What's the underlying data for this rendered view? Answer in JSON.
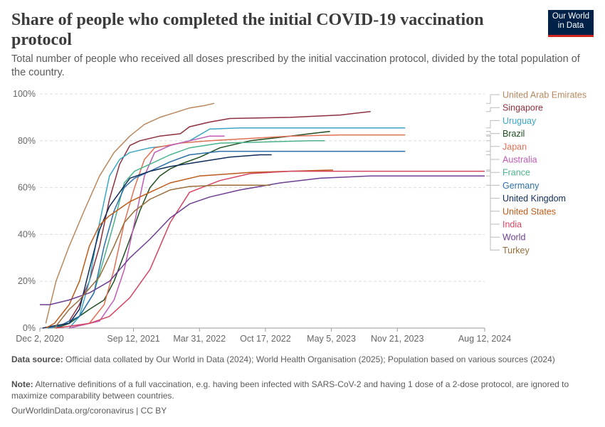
{
  "header": {
    "title": "Share of people who completed the initial COVID-19 vaccination protocol",
    "subtitle": "Total number of people who received all doses prescribed by the initial vaccination protocol, divided by the total population of the country.",
    "logo_line1": "Our World",
    "logo_line2": "in Data"
  },
  "colors": {
    "logo_bg": "#002147",
    "logo_accent": "#ce261e",
    "grid": "#dddddd",
    "axis": "#999999",
    "tick_text": "#666666",
    "connector": "#bbbbbb"
  },
  "chart_data": {
    "type": "line",
    "title": "Share of people who completed the initial COVID-19 vaccination protocol",
    "xlabel": "",
    "ylabel": "",
    "y_unit": "%",
    "ylim": [
      0,
      100
    ],
    "y_ticks": [
      "0%",
      "20%",
      "40%",
      "60%",
      "80%",
      "100%"
    ],
    "x_axis_type": "date",
    "xlim": [
      "2020-12-02",
      "2024-08-12"
    ],
    "x_ticks": [
      {
        "date": "2020-12-02",
        "label": "Dec 2, 2020"
      },
      {
        "date": "2021-09-12",
        "label": "Sep 12, 2021"
      },
      {
        "date": "2022-03-31",
        "label": "Mar 31, 2022"
      },
      {
        "date": "2022-10-17",
        "label": "Oct 17, 2022"
      },
      {
        "date": "2023-05-05",
        "label": "May 5, 2023"
      },
      {
        "date": "2023-11-21",
        "label": "Nov 21, 2023"
      },
      {
        "date": "2024-08-12",
        "label": "Aug 12, 2024"
      }
    ],
    "grid": "horizontal dashed",
    "legend": "right, end-of-line labels",
    "series": [
      {
        "name": "United Arab Emirates",
        "color": "#b8885e",
        "points": [
          [
            "2020-12-20",
            2
          ],
          [
            "2021-01-20",
            20
          ],
          [
            "2021-03-01",
            35
          ],
          [
            "2021-04-15",
            50
          ],
          [
            "2021-06-01",
            65
          ],
          [
            "2021-07-15",
            75
          ],
          [
            "2021-09-01",
            82
          ],
          [
            "2021-10-15",
            87
          ],
          [
            "2021-12-01",
            90
          ],
          [
            "2022-01-15",
            92
          ],
          [
            "2022-03-01",
            94
          ],
          [
            "2022-04-15",
            95
          ],
          [
            "2022-05-15",
            96
          ]
        ]
      },
      {
        "name": "Singapore",
        "color": "#8c2f3f",
        "points": [
          [
            "2021-01-20",
            0
          ],
          [
            "2021-03-01",
            3
          ],
          [
            "2021-04-01",
            10
          ],
          [
            "2021-05-01",
            20
          ],
          [
            "2021-06-01",
            35
          ],
          [
            "2021-07-01",
            55
          ],
          [
            "2021-08-01",
            70
          ],
          [
            "2021-09-01",
            78
          ],
          [
            "2021-10-01",
            80
          ],
          [
            "2021-12-01",
            82
          ],
          [
            "2022-02-01",
            83
          ],
          [
            "2022-03-01",
            86
          ],
          [
            "2022-05-01",
            88
          ],
          [
            "2022-07-01",
            89.5
          ],
          [
            "2023-01-01",
            90
          ],
          [
            "2023-06-01",
            91
          ],
          [
            "2023-09-01",
            92.5
          ]
        ]
      },
      {
        "name": "Uruguay",
        "color": "#3aa6c4",
        "points": [
          [
            "2021-03-01",
            0
          ],
          [
            "2021-04-01",
            5
          ],
          [
            "2021-05-01",
            20
          ],
          [
            "2021-06-01",
            45
          ],
          [
            "2021-07-01",
            65
          ],
          [
            "2021-08-01",
            72
          ],
          [
            "2021-09-01",
            75
          ],
          [
            "2021-11-01",
            77
          ],
          [
            "2022-01-01",
            78
          ],
          [
            "2022-03-01",
            80
          ],
          [
            "2022-05-01",
            85
          ],
          [
            "2022-08-01",
            85.5
          ],
          [
            "2023-12-15",
            85.5
          ]
        ]
      },
      {
        "name": "Brazil",
        "color": "#1f4f1f",
        "points": [
          [
            "2021-01-20",
            0
          ],
          [
            "2021-03-01",
            2
          ],
          [
            "2021-05-01",
            8
          ],
          [
            "2021-06-15",
            12
          ],
          [
            "2021-07-15",
            20
          ],
          [
            "2021-09-01",
            38
          ],
          [
            "2021-10-01",
            50
          ],
          [
            "2021-11-01",
            60
          ],
          [
            "2021-12-01",
            65
          ],
          [
            "2022-01-01",
            68
          ],
          [
            "2022-02-01",
            70
          ],
          [
            "2022-04-01",
            73
          ],
          [
            "2022-06-01",
            77
          ],
          [
            "2022-09-01",
            80
          ],
          [
            "2023-01-01",
            82
          ],
          [
            "2023-03-01",
            83
          ],
          [
            "2023-05-01",
            84
          ]
        ]
      },
      {
        "name": "Japan",
        "color": "#e07055",
        "points": [
          [
            "2021-03-01",
            0
          ],
          [
            "2021-05-01",
            2
          ],
          [
            "2021-06-15",
            10
          ],
          [
            "2021-07-15",
            25
          ],
          [
            "2021-08-15",
            45
          ],
          [
            "2021-09-15",
            60
          ],
          [
            "2021-10-15",
            72
          ],
          [
            "2021-11-15",
            77
          ],
          [
            "2022-02-01",
            79
          ],
          [
            "2022-05-01",
            80
          ],
          [
            "2023-01-01",
            82
          ],
          [
            "2023-06-01",
            82.5
          ],
          [
            "2023-12-15",
            82.5
          ]
        ]
      },
      {
        "name": "Australia",
        "color": "#c05ab5",
        "points": [
          [
            "2021-03-01",
            0
          ],
          [
            "2021-06-01",
            3
          ],
          [
            "2021-07-15",
            12
          ],
          [
            "2021-08-15",
            25
          ],
          [
            "2021-09-15",
            45
          ],
          [
            "2021-10-15",
            65
          ],
          [
            "2021-11-15",
            75
          ],
          [
            "2022-01-01",
            78
          ],
          [
            "2022-03-01",
            80
          ],
          [
            "2022-05-01",
            82
          ],
          [
            "2022-06-15",
            82
          ]
        ]
      },
      {
        "name": "France",
        "color": "#4ab38a",
        "points": [
          [
            "2020-12-27",
            0
          ],
          [
            "2021-02-01",
            1
          ],
          [
            "2021-04-01",
            5
          ],
          [
            "2021-05-15",
            15
          ],
          [
            "2021-06-15",
            30
          ],
          [
            "2021-07-15",
            45
          ],
          [
            "2021-08-15",
            62
          ],
          [
            "2021-09-15",
            67
          ],
          [
            "2021-11-01",
            70
          ],
          [
            "2022-01-01",
            74
          ],
          [
            "2022-03-01",
            77
          ],
          [
            "2022-06-01",
            79
          ],
          [
            "2023-03-01",
            80
          ],
          [
            "2023-04-15",
            80
          ]
        ]
      },
      {
        "name": "Germany",
        "color": "#2d6faa",
        "points": [
          [
            "2020-12-27",
            0
          ],
          [
            "2021-02-01",
            1
          ],
          [
            "2021-04-01",
            5
          ],
          [
            "2021-05-15",
            15
          ],
          [
            "2021-06-15",
            35
          ],
          [
            "2021-07-15",
            50
          ],
          [
            "2021-08-15",
            60
          ],
          [
            "2021-09-15",
            64
          ],
          [
            "2021-11-01",
            67
          ],
          [
            "2022-01-01",
            71
          ],
          [
            "2022-03-01",
            74
          ],
          [
            "2022-06-01",
            75.5
          ],
          [
            "2023-12-15",
            75.5
          ]
        ]
      },
      {
        "name": "United Kingdom",
        "color": "#0f2d5a",
        "points": [
          [
            "2020-12-10",
            0
          ],
          [
            "2021-01-15",
            1
          ],
          [
            "2021-03-01",
            2
          ],
          [
            "2021-04-01",
            8
          ],
          [
            "2021-05-01",
            25
          ],
          [
            "2021-06-01",
            42
          ],
          [
            "2021-07-01",
            52
          ],
          [
            "2021-08-01",
            58
          ],
          [
            "2021-09-01",
            64
          ],
          [
            "2021-11-01",
            67
          ],
          [
            "2022-01-01",
            69
          ],
          [
            "2022-04-01",
            71
          ],
          [
            "2022-07-01",
            73
          ],
          [
            "2022-10-01",
            74
          ],
          [
            "2022-11-05",
            74
          ]
        ]
      },
      {
        "name": "United States",
        "color": "#bd5a1a",
        "points": [
          [
            "2020-12-20",
            0
          ],
          [
            "2021-01-15",
            2
          ],
          [
            "2021-03-01",
            10
          ],
          [
            "2021-04-01",
            20
          ],
          [
            "2021-05-01",
            35
          ],
          [
            "2021-06-01",
            44
          ],
          [
            "2021-07-01",
            48
          ],
          [
            "2021-09-01",
            54
          ],
          [
            "2021-11-01",
            58
          ],
          [
            "2022-01-01",
            62
          ],
          [
            "2022-04-01",
            65
          ],
          [
            "2022-09-01",
            66.5
          ],
          [
            "2023-05-10",
            67.5
          ]
        ]
      },
      {
        "name": "India",
        "color": "#d4455f",
        "points": [
          [
            "2021-01-20",
            0
          ],
          [
            "2021-05-01",
            2
          ],
          [
            "2021-07-01",
            5
          ],
          [
            "2021-09-01",
            13
          ],
          [
            "2021-11-01",
            25
          ],
          [
            "2022-01-01",
            45
          ],
          [
            "2022-03-01",
            58
          ],
          [
            "2022-06-01",
            63
          ],
          [
            "2022-09-01",
            66
          ],
          [
            "2023-01-01",
            67
          ],
          [
            "2024-08-12",
            67
          ]
        ]
      },
      {
        "name": "World",
        "color": "#6d3e91",
        "points": [
          [
            "2020-12-02",
            10
          ],
          [
            "2021-01-01",
            10
          ],
          [
            "2021-03-01",
            12
          ],
          [
            "2021-05-01",
            15
          ],
          [
            "2021-07-01",
            20
          ],
          [
            "2021-09-01",
            30
          ],
          [
            "2021-11-01",
            38
          ],
          [
            "2022-01-01",
            47
          ],
          [
            "2022-03-01",
            53
          ],
          [
            "2022-05-01",
            56
          ],
          [
            "2022-08-01",
            59
          ],
          [
            "2022-12-01",
            62
          ],
          [
            "2023-04-01",
            64
          ],
          [
            "2023-09-01",
            65
          ],
          [
            "2024-08-12",
            65
          ]
        ]
      },
      {
        "name": "Turkey",
        "color": "#996d39",
        "points": [
          [
            "2021-01-15",
            0
          ],
          [
            "2021-03-01",
            8
          ],
          [
            "2021-04-01",
            12
          ],
          [
            "2021-06-01",
            22
          ],
          [
            "2021-07-15",
            35
          ],
          [
            "2021-08-15",
            45
          ],
          [
            "2021-09-15",
            50
          ],
          [
            "2021-11-01",
            55
          ],
          [
            "2022-01-01",
            59
          ],
          [
            "2022-03-01",
            60.5
          ],
          [
            "2022-06-01",
            61
          ],
          [
            "2022-11-01",
            61
          ]
        ]
      }
    ]
  },
  "footer": {
    "source_label": "Data source:",
    "source_text": "Official data collated by Our World in Data (2024); World Health Organisation (2025); Population based on various sources (2024)",
    "note_label": "Note:",
    "note_text": "Alternative definitions of a full vaccination, e.g. having been infected with SARS-CoV-2 and having 1 dose of a 2-dose protocol, are ignored to maximize comparability between countries.",
    "link": "OurWorldinData.org/coronavirus | CC BY"
  }
}
